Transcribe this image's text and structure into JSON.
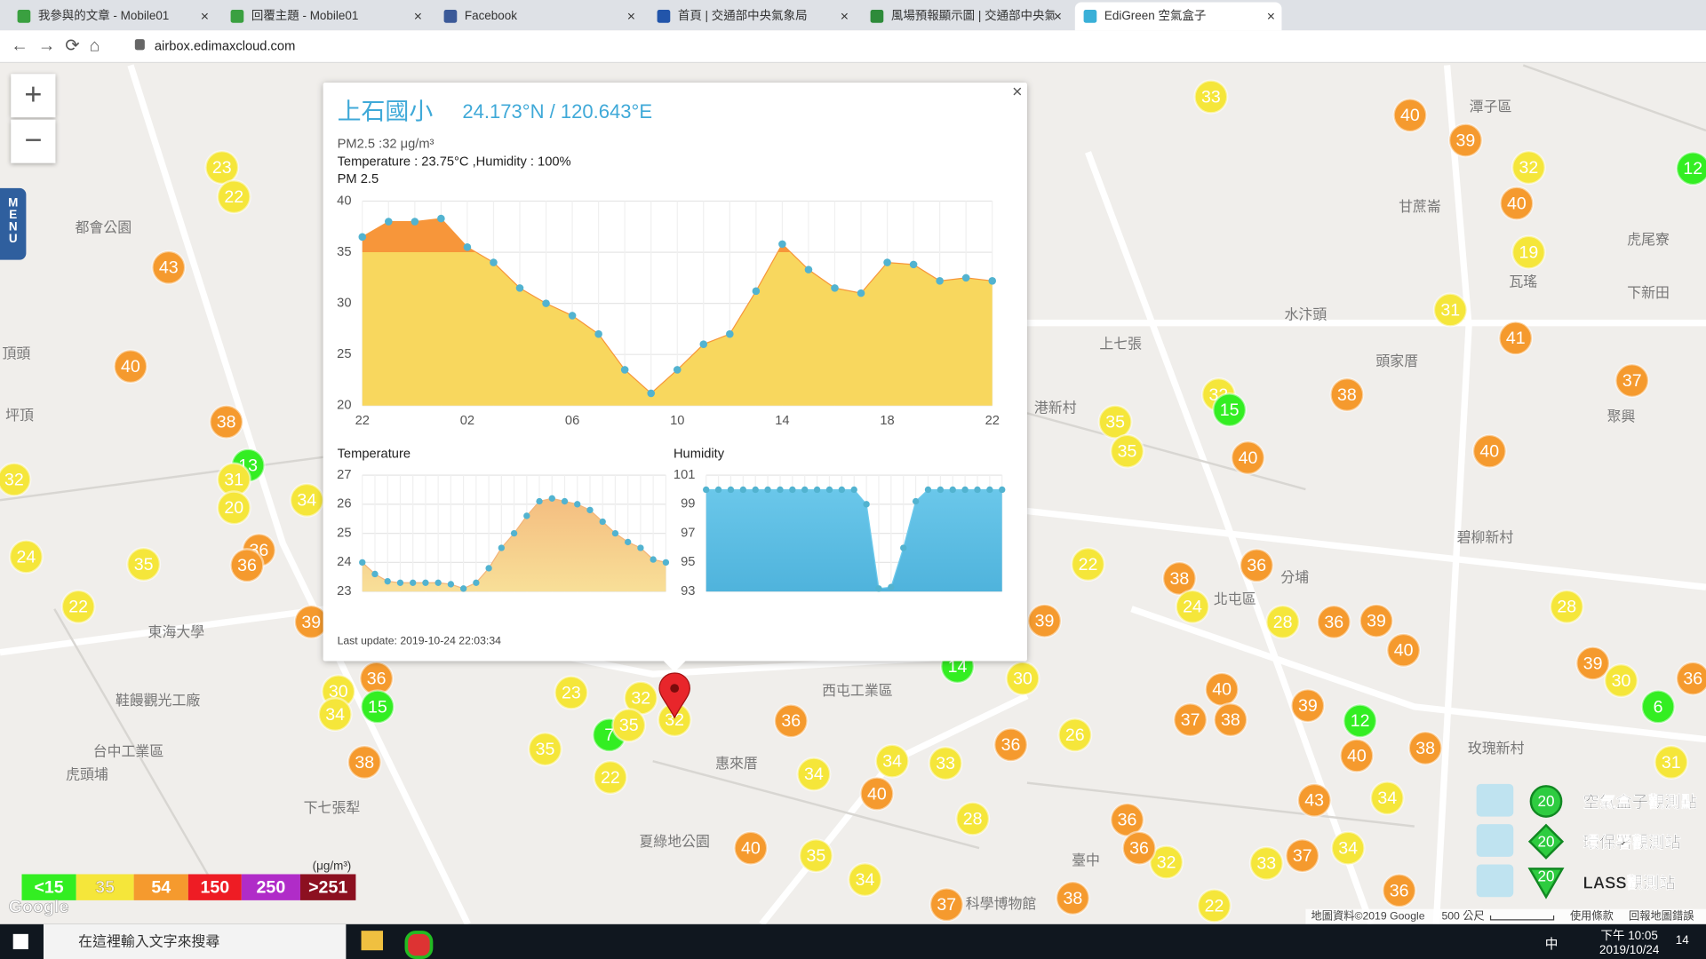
{
  "browser": {
    "tabs": [
      "我參與的文章 - Mobile01",
      "回覆主題 - Mobile01",
      "Facebook",
      "首頁 | 交通部中央氣象局",
      "風場預報顯示圖 | 交通部中央氣象",
      "EdiGreen 空氣盒子"
    ],
    "url": "airbox.edimaxcloud.com"
  },
  "map": {
    "menu": "MENU",
    "zoom_in": "+",
    "zoom_out": "−",
    "places": [
      "潭子區",
      "甘蔗崙",
      "瓦瑤",
      "虎尾寮",
      "下新田",
      "水汴頭",
      "上七張",
      "頭家厝",
      "聚興",
      "碧柳新村",
      "北屯區",
      "分埔",
      "西屯工業區",
      "惠來厝",
      "臺中",
      "台中工業區",
      "虎頭埔",
      "下七張犁",
      "夏綠地公園",
      "科學博物館",
      "玫瑰新村",
      "東海大學",
      "都會公園",
      "頂頭",
      "坪頂",
      "港新村",
      "鞋饅觀光工廠"
    ],
    "markers": [
      23,
      22,
      43,
      40,
      38,
      13,
      31,
      20,
      32,
      34,
      24,
      35,
      36,
      36,
      22,
      39,
      30,
      36,
      15,
      34,
      38,
      35,
      23,
      7,
      22,
      32,
      32,
      35,
      36,
      34,
      34,
      40,
      33,
      28,
      36,
      30,
      14,
      26,
      39,
      22,
      33,
      40,
      39,
      32,
      40,
      19,
      31,
      41,
      37,
      38,
      32,
      15,
      35,
      35,
      40,
      40,
      36,
      38,
      24,
      28,
      36,
      39,
      40,
      28,
      39,
      30,
      36,
      6,
      31,
      12,
      40,
      38,
      39,
      40,
      37,
      38,
      43,
      34,
      37,
      34,
      33,
      32,
      36,
      36,
      22,
      38,
      37,
      34,
      35,
      40,
      36,
      12
    ],
    "legend": {
      "unit": "(μg/m³)",
      "levels": [
        {
          "value": 15,
          "label": "<15",
          "color": "#33ee22"
        },
        {
          "value": 35,
          "label": "35",
          "color": "#f5e63a"
        },
        {
          "value": 54,
          "label": "54",
          "color": "#f59a2e"
        },
        {
          "value": 150,
          "label": "150",
          "color": "#ee1c24"
        },
        {
          "value": 250,
          "label": "250",
          "color": "#b02cc8"
        },
        {
          "value": 251,
          "label": ">251",
          "color": "#8c1020"
        }
      ]
    },
    "station_types": [
      {
        "value": 20,
        "label": "空氣盒子觀測點"
      },
      {
        "value": 20,
        "label": "環保署觀測站"
      },
      {
        "value": 20,
        "label": "LASS觀測站"
      }
    ],
    "google": "Google",
    "attribution": [
      "地圖資料©2019 Google",
      "500 公尺",
      "使用條款",
      "回報地圖錯誤"
    ]
  },
  "popup": {
    "close": "×",
    "site": "上石國小",
    "coords": "24.173°N / 120.643°E",
    "pm25_line": "PM2.5 :32 μg/m³",
    "weather_line": "Temperature : 23.75°C ,Humidity : 100%",
    "last_update": "Last update: 2019-10-24 22:03:34",
    "charts": [
      {
        "type": "area",
        "title": "PM 2.5",
        "categories": [
          "22",
          null,
          null,
          null,
          "02",
          null,
          null,
          null,
          "06",
          null,
          null,
          null,
          "10",
          null,
          null,
          null,
          "14",
          null,
          null,
          null,
          "18",
          null,
          null,
          null,
          "22"
        ],
        "values": [
          36.5,
          38,
          38,
          38.3,
          35.5,
          34,
          31.5,
          30,
          28.8,
          27,
          23.5,
          21.2,
          23.5,
          26,
          27,
          31.2,
          35.8,
          33.3,
          31.5,
          31,
          34,
          33.8,
          32.2,
          32.5,
          32.2
        ],
        "ylim": [
          20,
          40
        ],
        "yticks": [
          20,
          25,
          30,
          35,
          40
        ],
        "grid": true,
        "colors": {
          "high": "#f7963a",
          "low": "#f8d75e",
          "point": "#52b3d0"
        }
      },
      {
        "type": "area",
        "title": "Temperature",
        "values": [
          24,
          23.6,
          23.35,
          23.3,
          23.3,
          23.3,
          23.3,
          23.25,
          23.1,
          23.3,
          23.8,
          24.5,
          25,
          25.6,
          26.1,
          26.2,
          26.1,
          26,
          25.8,
          25.4,
          25,
          24.7,
          24.5,
          24.1,
          24
        ],
        "ylim": [
          23,
          27
        ],
        "yticks": [
          23,
          24,
          25,
          26,
          27
        ],
        "grid": true,
        "colors": {
          "high": "#f3b57a",
          "low": "#f8df98",
          "point": "#52b3d0"
        }
      },
      {
        "type": "area",
        "title": "Humidity",
        "values": [
          100,
          100,
          100,
          100,
          100,
          100,
          100,
          100,
          100,
          100,
          100,
          100,
          100,
          99,
          93.2,
          93.3,
          96,
          99.2,
          100,
          100,
          100,
          100,
          100,
          100,
          100
        ],
        "ylim": [
          93,
          101
        ],
        "yticks": [
          93,
          95,
          97,
          99,
          101
        ],
        "grid": true,
        "colors": {
          "high": "#6ecaec",
          "low": "#4fb3dc",
          "point": "#52b3d0"
        }
      }
    ]
  },
  "taskbar": {
    "search": "在這裡輸入文字來搜尋",
    "ime": "中",
    "time": "下午 10:05",
    "date": "2019/10/24",
    "notifications": "14"
  }
}
